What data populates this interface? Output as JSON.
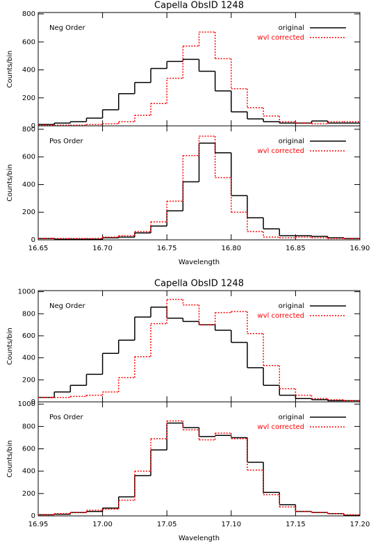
{
  "chart_data": [
    {
      "type": "histogram",
      "title": "Capella ObsID 1248",
      "annotation": "Neg Order",
      "ylabel": "Counts/bin",
      "bins": [
        16.65,
        16.6625,
        16.675,
        16.6875,
        16.7,
        16.7125,
        16.725,
        16.7375,
        16.75,
        16.7625,
        16.775,
        16.7875,
        16.8,
        16.8125,
        16.825,
        16.8375,
        16.85,
        16.8625,
        16.875,
        16.8875,
        16.9
      ],
      "series": [
        {
          "name": "original",
          "color": "#000000",
          "linestyle": "solid",
          "values": [
            10,
            20,
            30,
            55,
            115,
            230,
            310,
            410,
            460,
            475,
            390,
            250,
            100,
            50,
            30,
            20,
            20,
            35,
            20,
            20
          ]
        },
        {
          "name": "wvl corrected",
          "color": "#ff0000",
          "linestyle": "dotted",
          "values": [
            5,
            5,
            5,
            10,
            15,
            30,
            75,
            160,
            340,
            570,
            670,
            480,
            265,
            130,
            70,
            30,
            20,
            15,
            30,
            30
          ]
        }
      ],
      "xlim": [
        16.65,
        16.9
      ],
      "xticks": [
        16.65,
        {
          "value": 16.7,
          "label": "16.70"
        },
        16.75,
        {
          "value": 16.8,
          "label": "16.80"
        },
        16.85,
        {
          "value": 16.9,
          "label": "16.90"
        }
      ],
      "ylim": [
        0,
        810
      ],
      "yticks": [
        0,
        200,
        400,
        600,
        800
      ],
      "legend": "upper right"
    },
    {
      "type": "histogram",
      "annotation": "Pos Order",
      "ylabel": "Counts/bin",
      "xlabel": "Wavelength",
      "bins": [
        16.65,
        16.6625,
        16.675,
        16.6875,
        16.7,
        16.7125,
        16.725,
        16.7375,
        16.75,
        16.7625,
        16.775,
        16.7875,
        16.8,
        16.8125,
        16.825,
        16.8375,
        16.85,
        16.8625,
        16.875,
        16.8875,
        16.9
      ],
      "series": [
        {
          "name": "original",
          "color": "#000000",
          "linestyle": "solid",
          "values": [
            10,
            5,
            5,
            5,
            15,
            20,
            50,
            100,
            210,
            420,
            700,
            630,
            320,
            160,
            80,
            30,
            30,
            25,
            15,
            10
          ]
        },
        {
          "name": "wvl corrected",
          "color": "#ff0000",
          "linestyle": "dotted",
          "values": [
            10,
            10,
            10,
            10,
            20,
            30,
            60,
            130,
            280,
            610,
            750,
            450,
            200,
            60,
            20,
            15,
            20,
            15,
            10,
            10
          ]
        }
      ],
      "xlim": [
        16.65,
        16.9
      ],
      "xticks": [
        16.65,
        {
          "value": 16.7,
          "label": "16.70"
        },
        16.75,
        {
          "value": 16.8,
          "label": "16.80"
        },
        16.85,
        {
          "value": 16.9,
          "label": "16.90"
        }
      ],
      "ylim": [
        0,
        825
      ],
      "yticks": [
        0,
        200,
        400,
        600,
        800
      ],
      "legend": "upper right"
    },
    {
      "type": "histogram",
      "title": "Capella ObsID 1248",
      "annotation": "Neg Order",
      "ylabel": "Counts/bin",
      "bins": [
        16.95,
        16.9625,
        16.975,
        16.9875,
        17.0,
        17.0125,
        17.025,
        17.0375,
        17.05,
        17.0625,
        17.075,
        17.0875,
        17.1,
        17.1125,
        17.125,
        17.1375,
        17.15,
        17.1625,
        17.175,
        17.1875,
        17.2
      ],
      "series": [
        {
          "name": "original",
          "color": "#000000",
          "linestyle": "solid",
          "values": [
            40,
            90,
            150,
            250,
            440,
            560,
            770,
            860,
            760,
            730,
            700,
            650,
            540,
            310,
            150,
            60,
            30,
            20,
            10,
            10
          ]
        },
        {
          "name": "wvl corrected",
          "color": "#ff0000",
          "linestyle": "dotted",
          "values": [
            40,
            40,
            50,
            60,
            90,
            220,
            410,
            710,
            930,
            880,
            700,
            810,
            820,
            620,
            330,
            120,
            60,
            30,
            20,
            10
          ]
        }
      ],
      "xlim": [
        16.95,
        17.2
      ],
      "xticks": [
        16.95,
        {
          "value": 17.0,
          "label": "17.00"
        },
        17.05,
        {
          "value": 17.1,
          "label": "17.10"
        },
        17.15,
        {
          "value": 17.2,
          "label": "17.20"
        }
      ],
      "ylim": [
        0,
        1010
      ],
      "yticks": [
        0,
        200,
        400,
        600,
        800,
        1000
      ],
      "legend": "upper right"
    },
    {
      "type": "histogram",
      "annotation": "Pos Order",
      "ylabel": "Counts/bin",
      "xlabel": "Wavelength",
      "bins": [
        16.95,
        16.9625,
        16.975,
        16.9875,
        17.0,
        17.0125,
        17.025,
        17.0375,
        17.05,
        17.0625,
        17.075,
        17.0875,
        17.1,
        17.1125,
        17.125,
        17.1375,
        17.15,
        17.1625,
        17.175,
        17.1875,
        17.2
      ],
      "series": [
        {
          "name": "original",
          "color": "#000000",
          "linestyle": "solid",
          "values": [
            10,
            15,
            30,
            40,
            70,
            170,
            360,
            590,
            830,
            790,
            710,
            720,
            700,
            480,
            210,
            100,
            40,
            30,
            20,
            5
          ]
        },
        {
          "name": "wvl corrected",
          "color": "#ff0000",
          "linestyle": "dotted",
          "values": [
            10,
            20,
            30,
            50,
            60,
            140,
            400,
            690,
            850,
            770,
            680,
            740,
            690,
            410,
            190,
            80,
            40,
            30,
            20,
            10
          ]
        }
      ],
      "xlim": [
        16.95,
        17.2
      ],
      "xticks": [
        16.95,
        {
          "value": 17.0,
          "label": "17.00"
        },
        17.05,
        {
          "value": 17.1,
          "label": "17.10"
        },
        17.15,
        {
          "value": 17.2,
          "label": "17.20"
        }
      ],
      "ylim": [
        0,
        1020
      ],
      "yticks": [
        0,
        200,
        400,
        600,
        800,
        1000
      ],
      "legend": "upper right"
    }
  ]
}
